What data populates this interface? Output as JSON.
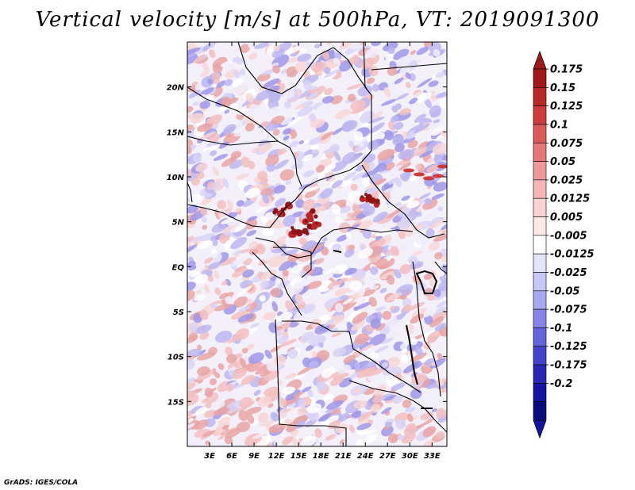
{
  "title": "Vertical velocity [m/s] at 500hPa, VT: 2019091300",
  "credit": "GrADS: IGES/COLA",
  "map": {
    "x_ticks": [
      "3E",
      "6E",
      "9E",
      "12E",
      "15E",
      "18E",
      "21E",
      "24E",
      "27E",
      "30E",
      "33E"
    ],
    "y_ticks": [
      "20N",
      "15N",
      "10N",
      "5N",
      "EQ",
      "5S",
      "10S",
      "15S"
    ],
    "x_tick_values": [
      3,
      6,
      9,
      12,
      15,
      18,
      21,
      24,
      27,
      30,
      33
    ],
    "y_tick_values": [
      20,
      15,
      10,
      5,
      0,
      -5,
      -10,
      -15
    ],
    "lon_range": [
      0,
      35
    ],
    "lat_range": [
      -20,
      25
    ],
    "field": "vertical velocity at 500 hPa",
    "units": "m/s"
  },
  "colorbar": {
    "labels": [
      "0.175",
      "0.15",
      "0.125",
      "0.1",
      "0.075",
      "0.05",
      "0.025",
      "0.0125",
      "0.005",
      "-0.005",
      "-0.0125",
      "-0.025",
      "-0.05",
      "-0.075",
      "-0.1",
      "-0.125",
      "-0.175",
      "-0.2"
    ],
    "colors": [
      "#a01818",
      "#b82828",
      "#cc3c3c",
      "#dc5a5a",
      "#e87878",
      "#f09898",
      "#f6b6b6",
      "#fbd2d2",
      "#fde8e8",
      "#ffffff",
      "#e4e4fc",
      "#c8c8f8",
      "#a8a8f2",
      "#8686ea",
      "#6464de",
      "#4242cc",
      "#2828b4",
      "#1414a0",
      "#0a0a80"
    ],
    "top_arrow_color": "#a01818",
    "bottom_arrow_color": "#1414a0"
  }
}
